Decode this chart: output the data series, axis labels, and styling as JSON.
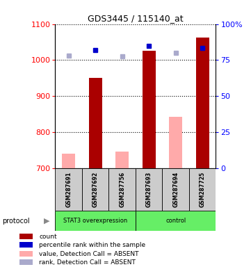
{
  "title": "GDS3445 / 115140_at",
  "samples": [
    "GSM287691",
    "GSM287692",
    "GSM287756",
    "GSM287693",
    "GSM287694",
    "GSM287725"
  ],
  "ylim_left": [
    700,
    1100
  ],
  "ylim_right": [
    0,
    100
  ],
  "yticks_left": [
    700,
    800,
    900,
    1000,
    1100
  ],
  "yticks_right": [
    0,
    25,
    50,
    75,
    100
  ],
  "count_values": [
    null,
    950,
    null,
    1025,
    null,
    1063
  ],
  "absent_count_values": [
    740,
    null,
    747,
    null,
    843,
    null
  ],
  "absent_rank_values": [
    1015,
    null,
    1010,
    null,
    1020,
    null
  ],
  "percentile_rank_values": [
    null,
    1028,
    null,
    1040,
    null,
    1033
  ],
  "absent_percentile_rank_values": [
    1012,
    null,
    1011,
    null,
    1021,
    null
  ],
  "bar_color_present": "#aa0000",
  "bar_color_absent": "#ffaaaa",
  "dot_color_present": "#0000cc",
  "dot_color_absent": "#aaaacc",
  "group_bg": "#66ee66",
  "sample_bg": "#cccccc",
  "legend_items": [
    {
      "label": "count",
      "color": "#aa0000"
    },
    {
      "label": "percentile rank within the sample",
      "color": "#0000cc"
    },
    {
      "label": "value, Detection Call = ABSENT",
      "color": "#ffaaaa"
    },
    {
      "label": "rank, Detection Call = ABSENT",
      "color": "#aaaacc"
    }
  ]
}
